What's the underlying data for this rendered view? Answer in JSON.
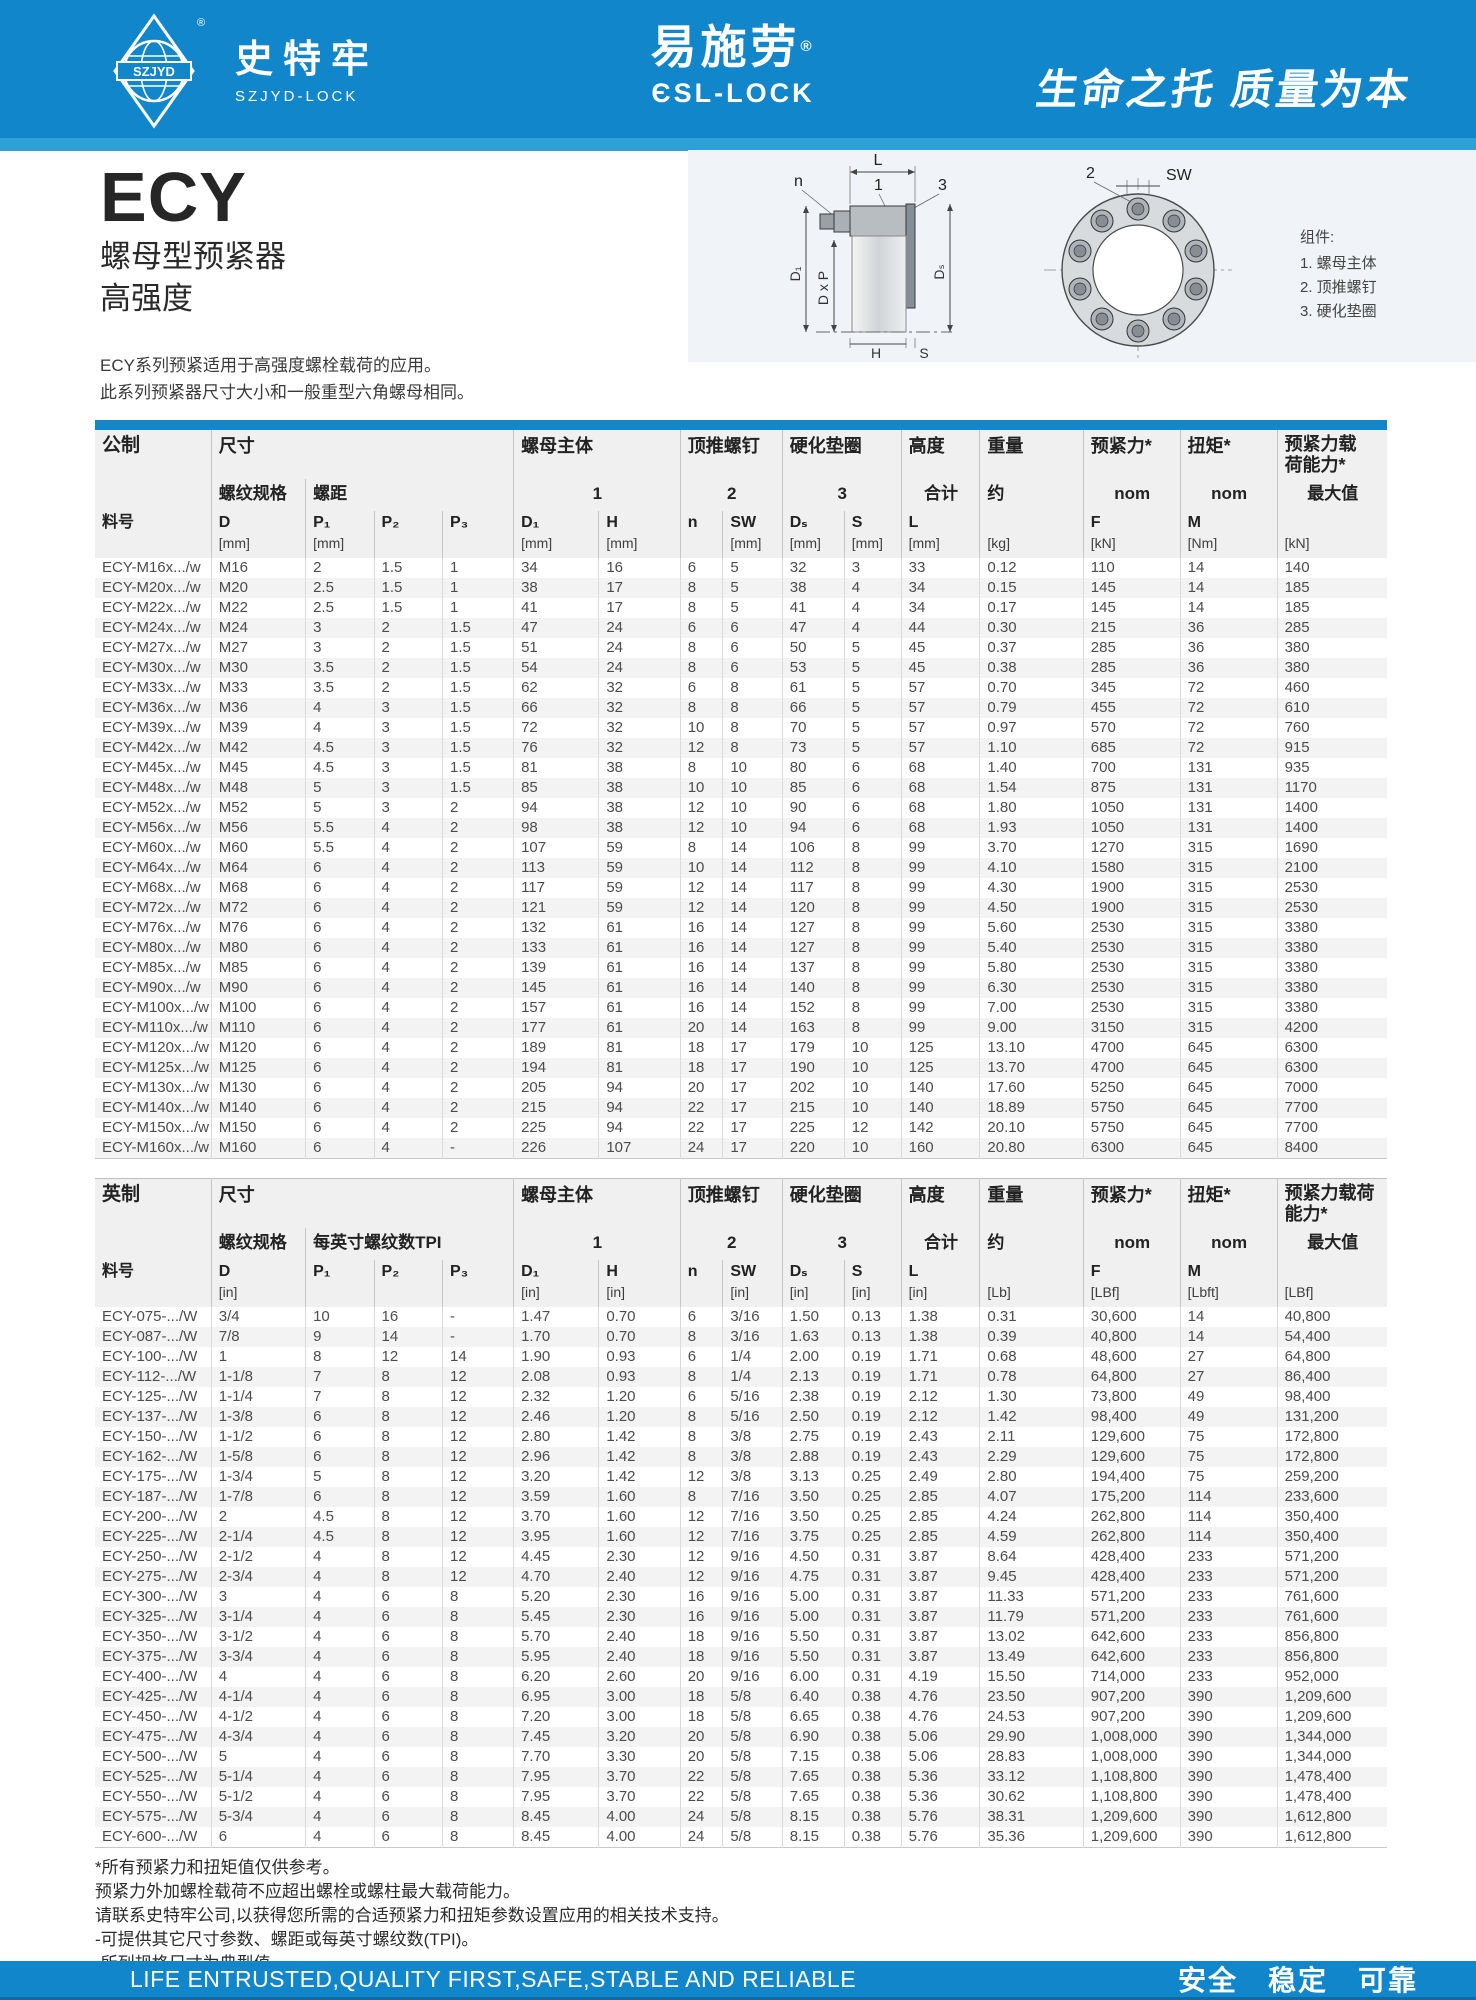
{
  "header": {
    "logo": {
      "banner_text": "SZJYD",
      "reg_mark": "®",
      "name_cn": "史特牢",
      "name_en": "SZJYD-LOCK"
    },
    "brand": {
      "name_cn": "易施劳",
      "reg_mark": "®",
      "name_en": "ЄSL-LOCK"
    },
    "slogan": "生命之托  质量为本"
  },
  "product": {
    "series": "ECY",
    "subtitle1": "螺母型预紧器",
    "subtitle2": "高强度",
    "desc_line1": "ECY系列预紧适用于高强度螺栓载荷的应用。",
    "desc_line2": "此系列预紧器尺寸大小和一般重型六角螺母相同。"
  },
  "diagram": {
    "labels": {
      "L": "L",
      "n": "n",
      "one": "1",
      "three": "3",
      "two": "2",
      "SW": "SW",
      "D1": "D₁",
      "DxP": "D x P",
      "Ds": "Dₛ",
      "H": "H",
      "S": "S"
    },
    "legend_title": "组件:",
    "legend_items": [
      "1.  螺母主体",
      "2.  顶推螺钉",
      "3.  硬化垫圈"
    ]
  },
  "metric_table": {
    "label": "公制",
    "g": {
      "size": "尺寸",
      "nut": "螺母主体",
      "push": "顶推螺钉",
      "washer": "硬化垫圈",
      "height": "高度",
      "weight": "重量",
      "preload": "预紧力*",
      "torque": "扭矩*",
      "capacity": "预紧力载\n荷能力*"
    },
    "s": {
      "spec": "螺纹规格",
      "pitch": "螺距",
      "one": "1",
      "two": "2",
      "three": "3",
      "total": "合计",
      "approx": "约",
      "nom_f": "nom",
      "nom_m": "nom",
      "max": "最大值"
    },
    "c": [
      {
        "sym": "料号",
        "unit": ""
      },
      {
        "sym": "D",
        "unit": "[mm]"
      },
      {
        "sym": "P₁",
        "unit": "[mm]"
      },
      {
        "sym": "P₂",
        "unit": ""
      },
      {
        "sym": "P₃",
        "unit": ""
      },
      {
        "sym": "D₁",
        "unit": "[mm]"
      },
      {
        "sym": "H",
        "unit": "[mm]"
      },
      {
        "sym": "n",
        "unit": ""
      },
      {
        "sym": "SW",
        "unit": "[mm]"
      },
      {
        "sym": "Dₛ",
        "unit": "[mm]"
      },
      {
        "sym": "S",
        "unit": "[mm]"
      },
      {
        "sym": "L",
        "unit": "[mm]"
      },
      {
        "sym": "",
        "unit": "[kg]"
      },
      {
        "sym": "F",
        "unit": "[kN]"
      },
      {
        "sym": "M",
        "unit": "[Nm]"
      },
      {
        "sym": "",
        "unit": "[kN]"
      }
    ],
    "rows": [
      [
        "ECY-M16x.../w",
        "M16",
        "2",
        "1.5",
        "1",
        "34",
        "16",
        "6",
        "5",
        "32",
        "3",
        "33",
        "0.12",
        "110",
        "14",
        "140"
      ],
      [
        "ECY-M20x.../w",
        "M20",
        "2.5",
        "1.5",
        "1",
        "38",
        "17",
        "8",
        "5",
        "38",
        "4",
        "34",
        "0.15",
        "145",
        "14",
        "185"
      ],
      [
        "ECY-M22x.../w",
        "M22",
        "2.5",
        "1.5",
        "1",
        "41",
        "17",
        "8",
        "5",
        "41",
        "4",
        "34",
        "0.17",
        "145",
        "14",
        "185"
      ],
      [
        "ECY-M24x.../w",
        "M24",
        "3",
        "2",
        "1.5",
        "47",
        "24",
        "6",
        "6",
        "47",
        "4",
        "44",
        "0.30",
        "215",
        "36",
        "285"
      ],
      [
        "ECY-M27x.../w",
        "M27",
        "3",
        "2",
        "1.5",
        "51",
        "24",
        "8",
        "6",
        "50",
        "5",
        "45",
        "0.37",
        "285",
        "36",
        "380"
      ],
      [
        "ECY-M30x.../w",
        "M30",
        "3.5",
        "2",
        "1.5",
        "54",
        "24",
        "8",
        "6",
        "53",
        "5",
        "45",
        "0.38",
        "285",
        "36",
        "380"
      ],
      [
        "ECY-M33x.../w",
        "M33",
        "3.5",
        "2",
        "1.5",
        "62",
        "32",
        "6",
        "8",
        "61",
        "5",
        "57",
        "0.70",
        "345",
        "72",
        "460"
      ],
      [
        "ECY-M36x.../w",
        "M36",
        "4",
        "3",
        "1.5",
        "66",
        "32",
        "8",
        "8",
        "66",
        "5",
        "57",
        "0.79",
        "455",
        "72",
        "610"
      ],
      [
        "ECY-M39x.../w",
        "M39",
        "4",
        "3",
        "1.5",
        "72",
        "32",
        "10",
        "8",
        "70",
        "5",
        "57",
        "0.97",
        "570",
        "72",
        "760"
      ],
      [
        "ECY-M42x.../w",
        "M42",
        "4.5",
        "3",
        "1.5",
        "76",
        "32",
        "12",
        "8",
        "73",
        "5",
        "57",
        "1.10",
        "685",
        "72",
        "915"
      ],
      [
        "ECY-M45x.../w",
        "M45",
        "4.5",
        "3",
        "1.5",
        "81",
        "38",
        "8",
        "10",
        "80",
        "6",
        "68",
        "1.40",
        "700",
        "131",
        "935"
      ],
      [
        "ECY-M48x.../w",
        "M48",
        "5",
        "3",
        "1.5",
        "85",
        "38",
        "10",
        "10",
        "85",
        "6",
        "68",
        "1.54",
        "875",
        "131",
        "1170"
      ],
      [
        "ECY-M52x.../w",
        "M52",
        "5",
        "3",
        "2",
        "94",
        "38",
        "12",
        "10",
        "90",
        "6",
        "68",
        "1.80",
        "1050",
        "131",
        "1400"
      ],
      [
        "ECY-M56x.../w",
        "M56",
        "5.5",
        "4",
        "2",
        "98",
        "38",
        "12",
        "10",
        "94",
        "6",
        "68",
        "1.93",
        "1050",
        "131",
        "1400"
      ],
      [
        "ECY-M60x.../w",
        "M60",
        "5.5",
        "4",
        "2",
        "107",
        "59",
        "8",
        "14",
        "106",
        "8",
        "99",
        "3.70",
        "1270",
        "315",
        "1690"
      ],
      [
        "ECY-M64x.../w",
        "M64",
        "6",
        "4",
        "2",
        "113",
        "59",
        "10",
        "14",
        "112",
        "8",
        "99",
        "4.10",
        "1580",
        "315",
        "2100"
      ],
      [
        "ECY-M68x.../w",
        "M68",
        "6",
        "4",
        "2",
        "117",
        "59",
        "12",
        "14",
        "117",
        "8",
        "99",
        "4.30",
        "1900",
        "315",
        "2530"
      ],
      [
        "ECY-M72x.../w",
        "M72",
        "6",
        "4",
        "2",
        "121",
        "59",
        "12",
        "14",
        "120",
        "8",
        "99",
        "4.50",
        "1900",
        "315",
        "2530"
      ],
      [
        "ECY-M76x.../w",
        "M76",
        "6",
        "4",
        "2",
        "132",
        "61",
        "16",
        "14",
        "127",
        "8",
        "99",
        "5.60",
        "2530",
        "315",
        "3380"
      ],
      [
        "ECY-M80x.../w",
        "M80",
        "6",
        "4",
        "2",
        "133",
        "61",
        "16",
        "14",
        "127",
        "8",
        "99",
        "5.40",
        "2530",
        "315",
        "3380"
      ],
      [
        "ECY-M85x.../w",
        "M85",
        "6",
        "4",
        "2",
        "139",
        "61",
        "16",
        "14",
        "137",
        "8",
        "99",
        "5.80",
        "2530",
        "315",
        "3380"
      ],
      [
        "ECY-M90x.../w",
        "M90",
        "6",
        "4",
        "2",
        "145",
        "61",
        "16",
        "14",
        "140",
        "8",
        "99",
        "6.30",
        "2530",
        "315",
        "3380"
      ],
      [
        "ECY-M100x.../w",
        "M100",
        "6",
        "4",
        "2",
        "157",
        "61",
        "16",
        "14",
        "152",
        "8",
        "99",
        "7.00",
        "2530",
        "315",
        "3380"
      ],
      [
        "ECY-M110x.../w",
        "M110",
        "6",
        "4",
        "2",
        "177",
        "61",
        "20",
        "14",
        "163",
        "8",
        "99",
        "9.00",
        "3150",
        "315",
        "4200"
      ],
      [
        "ECY-M120x.../w",
        "M120",
        "6",
        "4",
        "2",
        "189",
        "81",
        "18",
        "17",
        "179",
        "10",
        "125",
        "13.10",
        "4700",
        "645",
        "6300"
      ],
      [
        "ECY-M125x.../w",
        "M125",
        "6",
        "4",
        "2",
        "194",
        "81",
        "18",
        "17",
        "190",
        "10",
        "125",
        "13.70",
        "4700",
        "645",
        "6300"
      ],
      [
        "ECY-M130x.../w",
        "M130",
        "6",
        "4",
        "2",
        "205",
        "94",
        "20",
        "17",
        "202",
        "10",
        "140",
        "17.60",
        "5250",
        "645",
        "7000"
      ],
      [
        "ECY-M140x.../w",
        "M140",
        "6",
        "4",
        "2",
        "215",
        "94",
        "22",
        "17",
        "215",
        "10",
        "140",
        "18.89",
        "5750",
        "645",
        "7700"
      ],
      [
        "ECY-M150x.../w",
        "M150",
        "6",
        "4",
        "2",
        "225",
        "94",
        "22",
        "17",
        "225",
        "12",
        "142",
        "20.10",
        "5750",
        "645",
        "7700"
      ],
      [
        "ECY-M160x.../w",
        "M160",
        "6",
        "4",
        "-",
        "226",
        "107",
        "24",
        "17",
        "220",
        "10",
        "160",
        "20.80",
        "6300",
        "645",
        "8400"
      ]
    ]
  },
  "imperial_table": {
    "label": "英制",
    "g": {
      "size": "尺寸",
      "nut": "螺母主体",
      "push": "顶推螺钉",
      "washer": "硬化垫圈",
      "height": "高度",
      "weight": "重量",
      "preload": "预紧力*",
      "torque": "扭矩*",
      "capacity": "预紧力载荷\n能力*"
    },
    "s": {
      "spec": "螺纹规格",
      "pitch": "每英寸螺纹数TPI",
      "one": "1",
      "two": "2",
      "three": "3",
      "total": "合计",
      "approx": "约",
      "nom_f": "nom",
      "nom_m": "nom",
      "max": "最大值"
    },
    "c": [
      {
        "sym": "料号",
        "unit": ""
      },
      {
        "sym": "D",
        "unit": "[in]"
      },
      {
        "sym": "P₁",
        "unit": ""
      },
      {
        "sym": "P₂",
        "unit": ""
      },
      {
        "sym": "P₃",
        "unit": ""
      },
      {
        "sym": "D₁",
        "unit": "[in]"
      },
      {
        "sym": "H",
        "unit": "[in]"
      },
      {
        "sym": "n",
        "unit": ""
      },
      {
        "sym": "SW",
        "unit": "[in]"
      },
      {
        "sym": "Dₛ",
        "unit": "[in]"
      },
      {
        "sym": "S",
        "unit": "[in]"
      },
      {
        "sym": "L",
        "unit": "[in]"
      },
      {
        "sym": "",
        "unit": "[Lb]"
      },
      {
        "sym": "F",
        "unit": "[LBf]"
      },
      {
        "sym": "M",
        "unit": "[Lbft]"
      },
      {
        "sym": "",
        "unit": "[LBf]"
      }
    ],
    "rows": [
      [
        "ECY-075-.../W",
        "3/4",
        "10",
        "16",
        "-",
        "1.47",
        "0.70",
        "6",
        "3/16",
        "1.50",
        "0.13",
        "1.38",
        "0.31",
        "30,600",
        "14",
        "40,800"
      ],
      [
        "ECY-087-.../W",
        "7/8",
        "9",
        "14",
        "-",
        "1.70",
        "0.70",
        "8",
        "3/16",
        "1.63",
        "0.13",
        "1.38",
        "0.39",
        "40,800",
        "14",
        "54,400"
      ],
      [
        "ECY-100-.../W",
        "1",
        "8",
        "12",
        "14",
        "1.90",
        "0.93",
        "6",
        "1/4",
        "2.00",
        "0.19",
        "1.71",
        "0.68",
        "48,600",
        "27",
        "64,800"
      ],
      [
        "ECY-112-.../W",
        "1-1/8",
        "7",
        "8",
        "12",
        "2.08",
        "0.93",
        "8",
        "1/4",
        "2.13",
        "0.19",
        "1.71",
        "0.78",
        "64,800",
        "27",
        "86,400"
      ],
      [
        "ECY-125-.../W",
        "1-1/4",
        "7",
        "8",
        "12",
        "2.32",
        "1.20",
        "6",
        "5/16",
        "2.38",
        "0.19",
        "2.12",
        "1.30",
        "73,800",
        "49",
        "98,400"
      ],
      [
        "ECY-137-.../W",
        "1-3/8",
        "6",
        "8",
        "12",
        "2.46",
        "1.20",
        "8",
        "5/16",
        "2.50",
        "0.19",
        "2.12",
        "1.42",
        "98,400",
        "49",
        "131,200"
      ],
      [
        "ECY-150-.../W",
        "1-1/2",
        "6",
        "8",
        "12",
        "2.80",
        "1.42",
        "8",
        "3/8",
        "2.75",
        "0.19",
        "2.43",
        "2.11",
        "129,600",
        "75",
        "172,800"
      ],
      [
        "ECY-162-.../W",
        "1-5/8",
        "6",
        "8",
        "12",
        "2.96",
        "1.42",
        "8",
        "3/8",
        "2.88",
        "0.19",
        "2.43",
        "2.29",
        "129,600",
        "75",
        "172,800"
      ],
      [
        "ECY-175-.../W",
        "1-3/4",
        "5",
        "8",
        "12",
        "3.20",
        "1.42",
        "12",
        "3/8",
        "3.13",
        "0.25",
        "2.49",
        "2.80",
        "194,400",
        "75",
        "259,200"
      ],
      [
        "ECY-187-.../W",
        "1-7/8",
        "6",
        "8",
        "12",
        "3.59",
        "1.60",
        "8",
        "7/16",
        "3.50",
        "0.25",
        "2.85",
        "4.07",
        "175,200",
        "114",
        "233,600"
      ],
      [
        "ECY-200-.../W",
        "2",
        "4.5",
        "8",
        "12",
        "3.70",
        "1.60",
        "12",
        "7/16",
        "3.50",
        "0.25",
        "2.85",
        "4.24",
        "262,800",
        "114",
        "350,400"
      ],
      [
        "ECY-225-.../W",
        "2-1/4",
        "4.5",
        "8",
        "12",
        "3.95",
        "1.60",
        "12",
        "7/16",
        "3.75",
        "0.25",
        "2.85",
        "4.59",
        "262,800",
        "114",
        "350,400"
      ],
      [
        "ECY-250-.../W",
        "2-1/2",
        "4",
        "8",
        "12",
        "4.45",
        "2.30",
        "12",
        "9/16",
        "4.50",
        "0.31",
        "3.87",
        "8.64",
        "428,400",
        "233",
        "571,200"
      ],
      [
        "ECY-275-.../W",
        "2-3/4",
        "4",
        "8",
        "12",
        "4.70",
        "2.40",
        "12",
        "9/16",
        "4.75",
        "0.31",
        "3.87",
        "9.45",
        "428,400",
        "233",
        "571,200"
      ],
      [
        "ECY-300-.../W",
        "3",
        "4",
        "6",
        "8",
        "5.20",
        "2.30",
        "16",
        "9/16",
        "5.00",
        "0.31",
        "3.87",
        "11.33",
        "571,200",
        "233",
        "761,600"
      ],
      [
        "ECY-325-.../W",
        "3-1/4",
        "4",
        "6",
        "8",
        "5.45",
        "2.30",
        "16",
        "9/16",
        "5.00",
        "0.31",
        "3.87",
        "11.79",
        "571,200",
        "233",
        "761,600"
      ],
      [
        "ECY-350-.../W",
        "3-1/2",
        "4",
        "6",
        "8",
        "5.70",
        "2.40",
        "18",
        "9/16",
        "5.50",
        "0.31",
        "3.87",
        "13.02",
        "642,600",
        "233",
        "856,800"
      ],
      [
        "ECY-375-.../W",
        "3-3/4",
        "4",
        "6",
        "8",
        "5.95",
        "2.40",
        "18",
        "9/16",
        "5.50",
        "0.31",
        "3.87",
        "13.49",
        "642,600",
        "233",
        "856,800"
      ],
      [
        "ECY-400-.../W",
        "4",
        "4",
        "6",
        "8",
        "6.20",
        "2.60",
        "20",
        "9/16",
        "6.00",
        "0.31",
        "4.19",
        "15.50",
        "714,000",
        "233",
        "952,000"
      ],
      [
        "ECY-425-.../W",
        "4-1/4",
        "4",
        "6",
        "8",
        "6.95",
        "3.00",
        "18",
        "5/8",
        "6.40",
        "0.38",
        "4.76",
        "23.50",
        "907,200",
        "390",
        "1,209,600"
      ],
      [
        "ECY-450-.../W",
        "4-1/2",
        "4",
        "6",
        "8",
        "7.20",
        "3.00",
        "18",
        "5/8",
        "6.65",
        "0.38",
        "4.76",
        "24.53",
        "907,200",
        "390",
        "1,209,600"
      ],
      [
        "ECY-475-.../W",
        "4-3/4",
        "4",
        "6",
        "8",
        "7.45",
        "3.20",
        "20",
        "5/8",
        "6.90",
        "0.38",
        "5.06",
        "29.90",
        "1,008,000",
        "390",
        "1,344,000"
      ],
      [
        "ECY-500-.../W",
        "5",
        "4",
        "6",
        "8",
        "7.70",
        "3.30",
        "20",
        "5/8",
        "7.15",
        "0.38",
        "5.06",
        "28.83",
        "1,008,000",
        "390",
        "1,344,000"
      ],
      [
        "ECY-525-.../W",
        "5-1/4",
        "4",
        "6",
        "8",
        "7.95",
        "3.70",
        "22",
        "5/8",
        "7.65",
        "0.38",
        "5.36",
        "33.12",
        "1,108,800",
        "390",
        "1,478,400"
      ],
      [
        "ECY-550-.../W",
        "5-1/2",
        "4",
        "6",
        "8",
        "7.95",
        "3.70",
        "22",
        "5/8",
        "7.65",
        "0.38",
        "5.36",
        "30.62",
        "1,108,800",
        "390",
        "1,478,400"
      ],
      [
        "ECY-575-.../W",
        "5-3/4",
        "4",
        "6",
        "8",
        "8.45",
        "4.00",
        "24",
        "5/8",
        "8.15",
        "0.38",
        "5.76",
        "38.31",
        "1,209,600",
        "390",
        "1,612,800"
      ],
      [
        "ECY-600-.../W",
        "6",
        "4",
        "6",
        "8",
        "8.45",
        "4.00",
        "24",
        "5/8",
        "8.15",
        "0.38",
        "5.76",
        "35.36",
        "1,209,600",
        "390",
        "1,612,800"
      ]
    ]
  },
  "footnotes": [
    "*所有预紧力和扭矩值仅供参考。",
    " 预紧力外加螺栓载荷不应超出螺栓或螺柱最大载荷能力。",
    " 请联系史特牢公司,以获得您所需的合适预紧力和扭矩参数设置应用的相关技术支持。",
    "-可提供其它尺寸参数、螺距或每英寸螺纹数(TPI)。",
    "-所列规格尺寸为典型值。"
  ],
  "footer": {
    "en": "LIFE ENTRUSTED,QUALITY FIRST,SAFE,STABLE AND RELIABLE",
    "cn": "安全　稳定　可靠"
  },
  "colors": {
    "brand_blue": "#1186cb",
    "strip_blue": "#2f9fd8",
    "row_stripe": "#f3f3f3"
  }
}
